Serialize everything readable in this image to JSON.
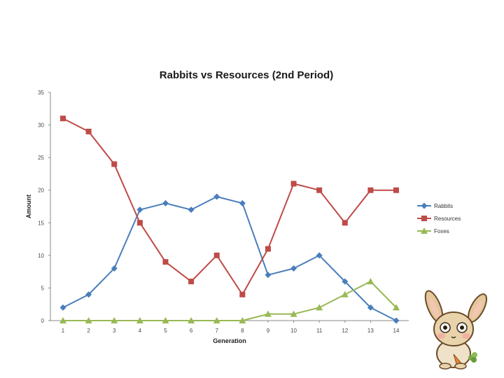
{
  "chart_data": {
    "type": "line",
    "title": "Rabbits vs Resources (2nd Period)",
    "xlabel": "Generation",
    "ylabel": "Amount",
    "categories": [
      "1",
      "2",
      "3",
      "4",
      "5",
      "6",
      "7",
      "8",
      "9",
      "10",
      "11",
      "12",
      "13",
      "14"
    ],
    "ylim": [
      0,
      35
    ],
    "yticks": [
      0,
      5,
      10,
      15,
      20,
      25,
      30,
      35
    ],
    "grid": false,
    "legend_position": "right",
    "series": [
      {
        "name": "Rabbits",
        "marker": "diamond",
        "color": "#4a7ebb",
        "values": [
          2,
          4,
          8,
          17,
          18,
          17,
          19,
          18,
          7,
          8,
          10,
          6,
          2,
          0
        ]
      },
      {
        "name": "Resources",
        "marker": "square",
        "color": "#be4b48",
        "values": [
          31,
          29,
          24,
          15,
          9,
          6,
          10,
          4,
          11,
          21,
          20,
          15,
          20,
          20
        ]
      },
      {
        "name": "Foxes",
        "marker": "triangle",
        "color": "#98b954",
        "values": [
          0,
          0,
          0,
          0,
          0,
          0,
          0,
          0,
          1,
          1,
          2,
          4,
          6,
          2
        ]
      }
    ]
  },
  "decoration": {
    "mascot": "bunny-mascot-holding-carrot"
  }
}
